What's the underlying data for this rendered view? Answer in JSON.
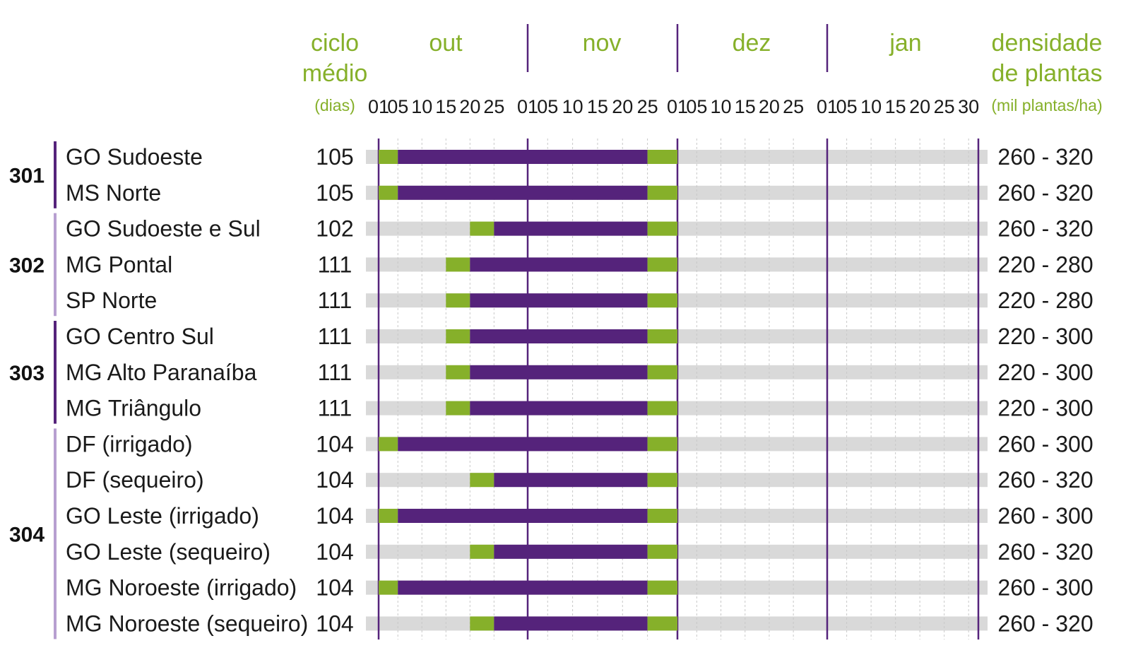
{
  "chart_data": {
    "type": "gantt",
    "headers": {
      "cycle": [
        "ciclo",
        "médio"
      ],
      "cycle_unit": "(dias)",
      "density": [
        "densidade",
        "de plantas"
      ],
      "density_unit": "(mil plantas/ha)"
    },
    "months": [
      "out",
      "nov",
      "dez",
      "jan"
    ],
    "day_ticks": [
      [
        "01",
        "05",
        "10",
        "15",
        "20",
        "25"
      ],
      [
        "01",
        "05",
        "10",
        "15",
        "20",
        "25"
      ],
      [
        "01",
        "05",
        "10",
        "15",
        "20",
        "25"
      ],
      [
        "01",
        "05",
        "10",
        "15",
        "20",
        "25",
        "30"
      ]
    ],
    "colors": {
      "optimal": "#55237b",
      "tolerated": "#86b02a",
      "background": "#d9d9d9",
      "group_bar_dark": "#55237b",
      "group_bar_light": "#b79fd0",
      "header": "#86b02a"
    },
    "groups": [
      {
        "label": "301",
        "tone": "dark",
        "rows": [
          0,
          1
        ]
      },
      {
        "label": "302",
        "tone": "light",
        "rows": [
          2,
          3,
          4
        ]
      },
      {
        "label": "303",
        "tone": "dark",
        "rows": [
          5,
          6,
          7
        ]
      },
      {
        "label": "304",
        "tone": "light",
        "rows": [
          8,
          9,
          10,
          11,
          12,
          13
        ]
      }
    ],
    "rows": [
      {
        "region": "GO Sudoeste",
        "cycle": "105",
        "density": "260 - 320",
        "green_start": "out 01",
        "purple_start": "out 05",
        "purple_end": "nov 25",
        "green_end": "dez 01"
      },
      {
        "region": "MS Norte",
        "cycle": "105",
        "density": "260 - 320",
        "green_start": "out 01",
        "purple_start": "out 05",
        "purple_end": "nov 25",
        "green_end": "dez 01"
      },
      {
        "region": "GO Sudoeste e Sul",
        "cycle": "102",
        "density": "260 - 320",
        "green_start": "out 20",
        "purple_start": "out 25",
        "purple_end": "nov 25",
        "green_end": "dez 01"
      },
      {
        "region": "MG Pontal",
        "cycle": "111",
        "density": "220 - 280",
        "green_start": "out 15",
        "purple_start": "out 20",
        "purple_end": "nov 25",
        "green_end": "dez 01"
      },
      {
        "region": "SP Norte",
        "cycle": "111",
        "density": "220 - 280",
        "green_start": "out 15",
        "purple_start": "out 20",
        "purple_end": "nov 25",
        "green_end": "dez 01"
      },
      {
        "region": "GO Centro Sul",
        "cycle": "111",
        "density": "220 - 300",
        "green_start": "out 15",
        "purple_start": "out 20",
        "purple_end": "nov 25",
        "green_end": "dez 01"
      },
      {
        "region": "MG Alto Paranaíba",
        "cycle": "111",
        "density": "220 - 300",
        "green_start": "out 15",
        "purple_start": "out 20",
        "purple_end": "nov 25",
        "green_end": "dez 01"
      },
      {
        "region": "MG Triângulo",
        "cycle": "111",
        "density": "220 - 300",
        "green_start": "out 15",
        "purple_start": "out 20",
        "purple_end": "nov 25",
        "green_end": "dez 01"
      },
      {
        "region": "DF (irrigado)",
        "cycle": "104",
        "density": "260 - 300",
        "green_start": "out 01",
        "purple_start": "out 05",
        "purple_end": "nov 25",
        "green_end": "dez 01"
      },
      {
        "region": "DF (sequeiro)",
        "cycle": "104",
        "density": "260 - 320",
        "green_start": "out 20",
        "purple_start": "out 25",
        "purple_end": "nov 25",
        "green_end": "dez 01"
      },
      {
        "region": "GO Leste (irrigado)",
        "cycle": "104",
        "density": "260 - 300",
        "green_start": "out 01",
        "purple_start": "out 05",
        "purple_end": "nov 25",
        "green_end": "dez 01"
      },
      {
        "region": "GO Leste (sequeiro)",
        "cycle": "104",
        "density": "260 - 320",
        "green_start": "out 20",
        "purple_start": "out 25",
        "purple_end": "nov 25",
        "green_end": "dez 01"
      },
      {
        "region": "MG Noroeste (irrigado)",
        "cycle": "104",
        "density": "260 - 300",
        "green_start": "out 01",
        "purple_start": "out 05",
        "purple_end": "nov 25",
        "green_end": "dez 01"
      },
      {
        "region": "MG Noroeste (sequeiro)",
        "cycle": "104",
        "density": "260 - 320",
        "green_start": "out 20",
        "purple_start": "out 25",
        "purple_end": "nov 25",
        "green_end": "dez 01"
      }
    ]
  }
}
